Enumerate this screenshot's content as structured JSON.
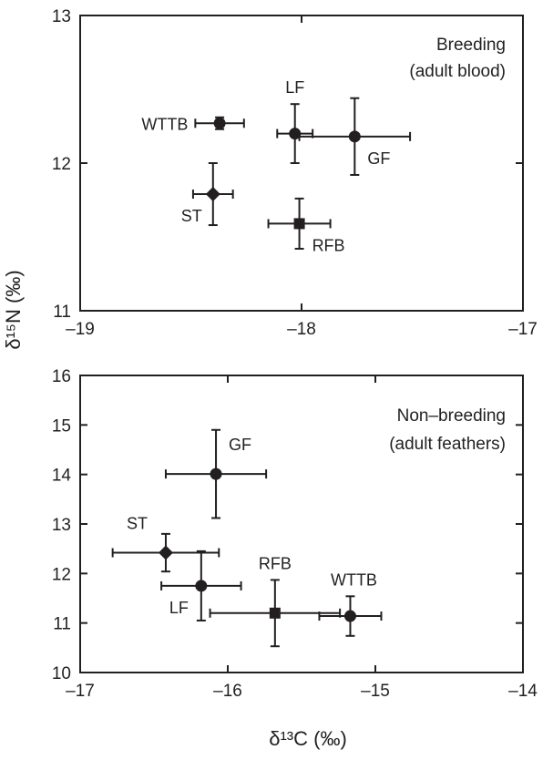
{
  "y_axis_label": "δ¹⁵N (‰)",
  "x_axis_label": "δ¹³C (‰)",
  "chart_data": [
    {
      "type": "scatter",
      "panel": "top",
      "annotation": [
        "Breeding",
        "(adult blood)"
      ],
      "xlim": [
        -19,
        -17
      ],
      "ylim": [
        11,
        13
      ],
      "xticks": [
        -19,
        -18,
        -17
      ],
      "xtick_labels": [
        "–19",
        "–18",
        "–17"
      ],
      "yticks": [
        11,
        12,
        13
      ],
      "ytick_labels": [
        "11",
        "12",
        "13"
      ],
      "grid": false,
      "points": [
        {
          "label": "WTTB",
          "marker": "circle",
          "x": -18.37,
          "y": 12.27,
          "xerr": 0.11,
          "yerr": 0.04,
          "label_pos": "left"
        },
        {
          "label": "LF",
          "marker": "circle",
          "x": -18.03,
          "y": 12.2,
          "xerr": 0.08,
          "yerr": 0.2,
          "label_pos": "above"
        },
        {
          "label": "GF",
          "marker": "circle",
          "x": -17.76,
          "y": 12.18,
          "xerr": 0.25,
          "yerr": 0.26,
          "label_pos": "below-right"
        },
        {
          "label": "ST",
          "marker": "diamond",
          "x": -18.4,
          "y": 11.79,
          "xerr": 0.09,
          "yerr": 0.21,
          "label_pos": "below-left"
        },
        {
          "label": "RFB",
          "marker": "square",
          "x": -18.01,
          "y": 11.59,
          "xerr": 0.14,
          "yerr": 0.17,
          "label_pos": "below-right"
        }
      ]
    },
    {
      "type": "scatter",
      "panel": "bottom",
      "annotation": [
        "Non–breeding",
        "(adult feathers)"
      ],
      "xlim": [
        -17,
        -14
      ],
      "ylim": [
        10,
        16
      ],
      "xticks": [
        -17,
        -16,
        -15,
        -14
      ],
      "xtick_labels": [
        "–17",
        "–16",
        "–15",
        "–14"
      ],
      "yticks": [
        10,
        11,
        12,
        13,
        14,
        15,
        16
      ],
      "ytick_labels": [
        "10",
        "11",
        "12",
        "13",
        "14",
        "15",
        "16"
      ],
      "grid": false,
      "points": [
        {
          "label": "GF",
          "marker": "circle",
          "x": -16.08,
          "y": 14.01,
          "xerr": 0.34,
          "yerr": 0.89,
          "label_pos": "above-right"
        },
        {
          "label": "ST",
          "marker": "diamond",
          "x": -16.42,
          "y": 12.42,
          "xerr": 0.36,
          "yerr": 0.38,
          "label_pos": "above-left"
        },
        {
          "label": "LF",
          "marker": "circle",
          "x": -16.18,
          "y": 11.75,
          "xerr": 0.27,
          "yerr": 0.7,
          "label_pos": "below-left"
        },
        {
          "label": "RFB",
          "marker": "square",
          "x": -15.68,
          "y": 11.2,
          "xerr": 0.44,
          "yerr": 0.67,
          "label_pos": "above"
        },
        {
          "label": "WTTB",
          "marker": "circle",
          "x": -15.17,
          "y": 11.14,
          "xerr": 0.21,
          "yerr": 0.4,
          "label_pos": "above"
        }
      ]
    }
  ]
}
